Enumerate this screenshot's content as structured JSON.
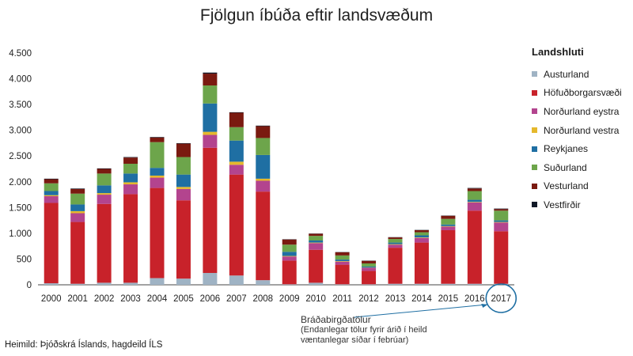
{
  "chart_data": {
    "type": "bar",
    "stacked": true,
    "title": "Fjölgun íbúða eftir landsvæðum",
    "categories": [
      "2000",
      "2001",
      "2002",
      "2003",
      "2004",
      "2005",
      "2006",
      "2007",
      "2008",
      "2009",
      "2010",
      "2011",
      "2012",
      "2013",
      "2014",
      "2015",
      "2016",
      "2017"
    ],
    "ylim": [
      0,
      4500
    ],
    "yticks": [
      0,
      500,
      1000,
      1500,
      2000,
      2500,
      3000,
      3500,
      4000,
      4500
    ],
    "ytick_labels": [
      "0",
      "500",
      "1.000",
      "1.500",
      "2.000",
      "2.500",
      "3.000",
      "3.500",
      "4.000",
      "4.500"
    ],
    "legend_title": "Landshluti",
    "series": [
      {
        "name": "Austurland",
        "color": "#9fb3c4",
        "values": [
          30,
          20,
          40,
          40,
          130,
          120,
          230,
          180,
          90,
          10,
          40,
          10,
          10,
          20,
          20,
          20,
          20,
          20
        ]
      },
      {
        "name": "Höfuðborgarsvæði",
        "color": "#c8222a",
        "values": [
          1560,
          1200,
          1530,
          1720,
          1750,
          1520,
          2430,
          1960,
          1720,
          460,
          640,
          380,
          260,
          700,
          800,
          1040,
          1420,
          1020
        ]
      },
      {
        "name": "Norðurland eystra",
        "color": "#b3448e",
        "values": [
          130,
          170,
          180,
          190,
          200,
          220,
          250,
          190,
          210,
          80,
          130,
          60,
          60,
          60,
          90,
          70,
          160,
          170
        ]
      },
      {
        "name": "Norðurland vestra",
        "color": "#e5b82c",
        "values": [
          20,
          40,
          30,
          40,
          40,
          40,
          60,
          60,
          40,
          10,
          10,
          10,
          5,
          10,
          10,
          10,
          10,
          10
        ]
      },
      {
        "name": "Reykjanes",
        "color": "#1f6fa3",
        "values": [
          80,
          130,
          150,
          170,
          150,
          240,
          550,
          410,
          460,
          80,
          40,
          30,
          20,
          30,
          40,
          30,
          40,
          30
        ]
      },
      {
        "name": "Suðurland",
        "color": "#6da54b",
        "values": [
          150,
          210,
          230,
          190,
          500,
          340,
          350,
          260,
          330,
          140,
          90,
          80,
          60,
          70,
          60,
          110,
          170,
          190
        ]
      },
      {
        "name": "Vesturland",
        "color": "#7a1a10",
        "values": [
          80,
          90,
          90,
          120,
          90,
          260,
          230,
          280,
          230,
          100,
          40,
          60,
          50,
          30,
          40,
          60,
          50,
          30
        ]
      },
      {
        "name": "Vestfirðir",
        "color": "#111827",
        "values": [
          10,
          10,
          10,
          10,
          10,
          10,
          20,
          10,
          10,
          5,
          5,
          5,
          5,
          5,
          5,
          5,
          10,
          10
        ]
      }
    ],
    "highlight_category": "2017",
    "grid": false,
    "legend_position": "right"
  },
  "note": {
    "title": "Bráðabirgðatölur",
    "line1": "(Endanlegar tölur fyrir árið í heild",
    "line2": "væntanlegar síðar í febrúar)"
  },
  "source": "Heimild: Þjóðskrá Íslands, hagdeild ÍLS"
}
